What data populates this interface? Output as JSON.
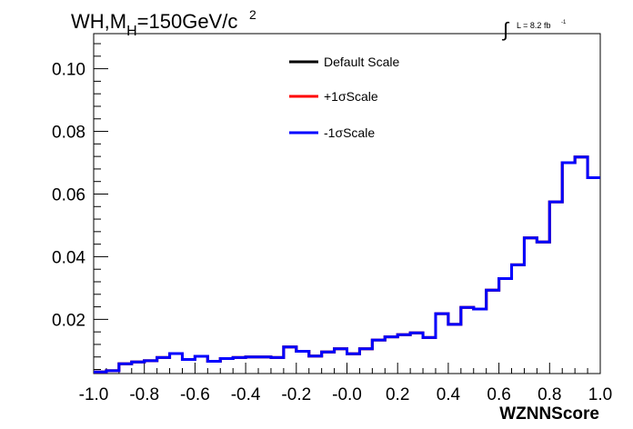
{
  "chart_data": {
    "type": "line",
    "title_main": "WH,M",
    "title_sub": "H",
    "title_rest": "=150GeV/c",
    "title_sup": "2",
    "lumi_integral": "∫",
    "lumi_text": "L = 8.2 fb",
    "lumi_sup": "-1",
    "xlabel": "WZNNScore",
    "ylabel": "",
    "xlim": [
      -1.0,
      1.0
    ],
    "ylim": [
      0.0027,
      0.1112
    ],
    "x_ticks": [
      -1.0,
      -0.8,
      -0.6,
      -0.4,
      -0.2,
      0.0,
      0.2,
      0.4,
      0.6,
      0.8,
      1.0
    ],
    "x_tick_labels": [
      "-1.0",
      "-0.8",
      "-0.6",
      "-0.4",
      "-0.2",
      "-0.0",
      "0.2",
      "0.4",
      "0.6",
      "0.8",
      "1.0"
    ],
    "y_ticks": [
      0.02,
      0.04,
      0.06,
      0.08,
      0.1
    ],
    "y_tick_labels": [
      "0.02",
      "0.04",
      "0.06",
      "0.08",
      "0.10"
    ],
    "legend_position": "top-center",
    "grid": false,
    "bin_edges": [
      -1.0,
      -0.95,
      -0.9,
      -0.85,
      -0.8,
      -0.75,
      -0.7,
      -0.65,
      -0.6,
      -0.55,
      -0.5,
      -0.45,
      -0.4,
      -0.35,
      -0.3,
      -0.25,
      -0.2,
      -0.15,
      -0.1,
      -0.05,
      0.0,
      0.05,
      0.1,
      0.15,
      0.2,
      0.25,
      0.3,
      0.35,
      0.4,
      0.45,
      0.5,
      0.55,
      0.6,
      0.65,
      0.7,
      0.75,
      0.8,
      0.85,
      0.9,
      0.95,
      1.0
    ],
    "series": [
      {
        "name": "Default Scale",
        "color": "#000000",
        "values": [
          0.0032,
          0.0036,
          0.0058,
          0.0064,
          0.0068,
          0.0078,
          0.0091,
          0.0072,
          0.0082,
          0.0066,
          0.0075,
          0.0078,
          0.008,
          0.008,
          0.0078,
          0.0112,
          0.0098,
          0.0083,
          0.0096,
          0.0106,
          0.009,
          0.0106,
          0.0134,
          0.0144,
          0.0151,
          0.0157,
          0.0142,
          0.0218,
          0.0184,
          0.0238,
          0.0233,
          0.0293,
          0.033,
          0.0374,
          0.046,
          0.0447,
          0.0575,
          0.07,
          0.0718,
          0.0652
        ]
      },
      {
        "name": "+1σScale",
        "color": "#ff0000",
        "values": [
          0.0032,
          0.0036,
          0.0058,
          0.0064,
          0.0068,
          0.0078,
          0.0091,
          0.0072,
          0.0082,
          0.0066,
          0.0075,
          0.0078,
          0.008,
          0.008,
          0.0078,
          0.0112,
          0.0098,
          0.0083,
          0.0096,
          0.0106,
          0.009,
          0.0106,
          0.0134,
          0.0144,
          0.0151,
          0.0157,
          0.0142,
          0.0218,
          0.0184,
          0.0238,
          0.0233,
          0.0293,
          0.033,
          0.0374,
          0.046,
          0.0447,
          0.0575,
          0.07,
          0.0718,
          0.0652
        ]
      },
      {
        "name": "-1σScale",
        "color": "#0000ff",
        "values": [
          0.0032,
          0.0036,
          0.0058,
          0.0064,
          0.0068,
          0.0078,
          0.0091,
          0.0072,
          0.0082,
          0.0066,
          0.0075,
          0.0078,
          0.008,
          0.008,
          0.0078,
          0.0112,
          0.0098,
          0.0083,
          0.0096,
          0.0106,
          0.009,
          0.0106,
          0.0134,
          0.0144,
          0.0151,
          0.0157,
          0.0142,
          0.0218,
          0.0184,
          0.0238,
          0.0233,
          0.0293,
          0.033,
          0.0374,
          0.046,
          0.0447,
          0.0575,
          0.07,
          0.0718,
          0.0652
        ]
      }
    ]
  }
}
